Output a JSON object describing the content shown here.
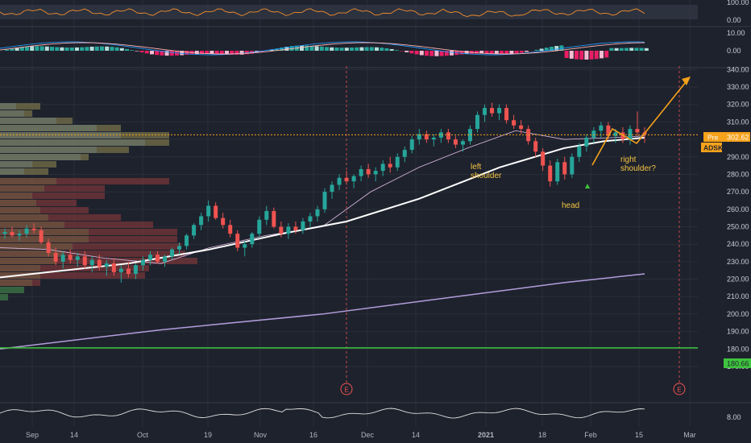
{
  "symbol": "ADSK",
  "pre_label": "Pre",
  "pre_value": "302.62",
  "support_value": "180.66",
  "earnings_marker": "E",
  "colors": {
    "background": "#1e222d",
    "up": "#26a69a",
    "down": "#ef5350",
    "sma50": "#ffffff",
    "sma200": "#b39ddb",
    "ema20": "#e1bee7",
    "support": "#3ec43e",
    "orange": "#f7a21b",
    "annotation": "#f5c542",
    "rsi_line": "#f28e2b",
    "macd_line": "#2196f3",
    "signal_line": "#ffb3b3"
  },
  "x_ticks": [
    "Sep",
    "14",
    "Oct",
    "19",
    "Nov",
    "16",
    "Dec",
    "14",
    "2021",
    "18",
    "Feb",
    "15",
    "Mar"
  ],
  "annotations": {
    "left_shoulder_1": "left",
    "left_shoulder_2": "shoulder",
    "head": "head",
    "right_shoulder_1": "right",
    "right_shoulder_2": "shoulder?"
  },
  "chart_data": [
    {
      "type": "candlestick",
      "symbol": "ADSK",
      "y_ticks": [
        170,
        180,
        190,
        200,
        210,
        220,
        230,
        240,
        250,
        260,
        270,
        280,
        290,
        300,
        310,
        320,
        330,
        340
      ],
      "ylim": [
        164,
        342
      ],
      "grid": true,
      "last_price": 302.62,
      "horizontal_line": 180.66,
      "candles_approx": [
        [
          246,
          249,
          243,
          247
        ],
        [
          247,
          250,
          244,
          245
        ],
        [
          245,
          248,
          242,
          246
        ],
        [
          246,
          251,
          244,
          249
        ],
        [
          249,
          252,
          246,
          248
        ],
        [
          248,
          250,
          240,
          241
        ],
        [
          241,
          243,
          233,
          235
        ],
        [
          235,
          238,
          228,
          230
        ],
        [
          230,
          236,
          226,
          234
        ],
        [
          234,
          237,
          229,
          231
        ],
        [
          231,
          235,
          227,
          233
        ],
        [
          233,
          236,
          226,
          228
        ],
        [
          228,
          233,
          224,
          231
        ],
        [
          231,
          234,
          225,
          227
        ],
        [
          227,
          231,
          222,
          229
        ],
        [
          229,
          232,
          222,
          224
        ],
        [
          224,
          228,
          218,
          226
        ],
        [
          226,
          230,
          221,
          223
        ],
        [
          223,
          229,
          220,
          228
        ],
        [
          228,
          233,
          225,
          231
        ],
        [
          231,
          236,
          228,
          234
        ],
        [
          234,
          236,
          229,
          230
        ],
        [
          230,
          234,
          227,
          233
        ],
        [
          233,
          238,
          231,
          237
        ],
        [
          237,
          241,
          234,
          239
        ],
        [
          239,
          246,
          237,
          245
        ],
        [
          245,
          252,
          243,
          251
        ],
        [
          251,
          258,
          248,
          256
        ],
        [
          256,
          265,
          253,
          262
        ],
        [
          262,
          264,
          254,
          255
        ],
        [
          255,
          258,
          249,
          251
        ],
        [
          251,
          254,
          244,
          246
        ],
        [
          246,
          248,
          236,
          238
        ],
        [
          238,
          242,
          233,
          240
        ],
        [
          240,
          247,
          238,
          246
        ],
        [
          246,
          256,
          244,
          254
        ],
        [
          254,
          262,
          251,
          259
        ],
        [
          259,
          261,
          249,
          250
        ],
        [
          250,
          253,
          244,
          246
        ],
        [
          246,
          252,
          243,
          250
        ],
        [
          250,
          253,
          246,
          248
        ],
        [
          248,
          255,
          246,
          253
        ],
        [
          253,
          258,
          250,
          256
        ],
        [
          256,
          262,
          253,
          260
        ],
        [
          260,
          272,
          258,
          270
        ],
        [
          270,
          276,
          266,
          274
        ],
        [
          274,
          280,
          271,
          278
        ],
        [
          278,
          282,
          274,
          276
        ],
        [
          276,
          280,
          272,
          279
        ],
        [
          279,
          285,
          276,
          283
        ],
        [
          283,
          286,
          278,
          280
        ],
        [
          280,
          284,
          276,
          282
        ],
        [
          282,
          288,
          279,
          286
        ],
        [
          286,
          290,
          281,
          284
        ],
        [
          284,
          292,
          282,
          290
        ],
        [
          290,
          296,
          287,
          294
        ],
        [
          294,
          302,
          292,
          300
        ],
        [
          300,
          306,
          297,
          303
        ],
        [
          303,
          305,
          298,
          300
        ],
        [
          300,
          303,
          296,
          301
        ],
        [
          301,
          306,
          298,
          304
        ],
        [
          304,
          306,
          298,
          300
        ],
        [
          300,
          302,
          295,
          297
        ],
        [
          297,
          300,
          293,
          299
        ],
        [
          299,
          308,
          297,
          306
        ],
        [
          306,
          316,
          304,
          314
        ],
        [
          314,
          320,
          310,
          318
        ],
        [
          318,
          321,
          313,
          315
        ],
        [
          315,
          320,
          311,
          318
        ],
        [
          318,
          320,
          309,
          311
        ],
        [
          311,
          314,
          306,
          308
        ],
        [
          308,
          311,
          303,
          306
        ],
        [
          306,
          308,
          297,
          299
        ],
        [
          299,
          301,
          290,
          293
        ],
        [
          293,
          295,
          282,
          285
        ],
        [
          285,
          288,
          273,
          276
        ],
        [
          276,
          289,
          274,
          287
        ],
        [
          287,
          290,
          277,
          280
        ],
        [
          280,
          292,
          278,
          290
        ],
        [
          290,
          298,
          287,
          296
        ],
        [
          296,
          303,
          293,
          301
        ],
        [
          301,
          307,
          298,
          305
        ],
        [
          305,
          310,
          301,
          308
        ],
        [
          308,
          310,
          300,
          302
        ],
        [
          302,
          306,
          298,
          304
        ],
        [
          304,
          307,
          298,
          300
        ],
        [
          300,
          308,
          297,
          306
        ],
        [
          306,
          316,
          302,
          304
        ],
        [
          304,
          307,
          298,
          303
        ]
      ],
      "sma50_approx": [
        [
          0,
          221
        ],
        [
          60,
          224
        ],
        [
          160,
          229
        ],
        [
          260,
          237
        ],
        [
          350,
          246
        ],
        [
          430,
          253
        ],
        [
          520,
          266
        ],
        [
          620,
          284
        ],
        [
          700,
          295
        ],
        [
          750,
          299
        ],
        [
          800,
          301
        ]
      ],
      "sma200_approx": [
        [
          0,
          180
        ],
        [
          200,
          191
        ],
        [
          400,
          200
        ],
        [
          600,
          212
        ],
        [
          700,
          218
        ],
        [
          800,
          223
        ]
      ],
      "ema20_approx": [
        [
          0,
          238
        ],
        [
          60,
          237
        ],
        [
          130,
          232
        ],
        [
          200,
          229
        ],
        [
          260,
          238
        ],
        [
          330,
          245
        ],
        [
          400,
          250
        ],
        [
          460,
          270
        ],
        [
          520,
          284
        ],
        [
          580,
          295
        ],
        [
          640,
          305
        ],
        [
          700,
          300
        ],
        [
          760,
          301
        ],
        [
          800,
          302
        ]
      ],
      "title": ""
    },
    {
      "type": "line",
      "name": "RSI panel",
      "y_ticks": [
        "100.00",
        "0.00"
      ]
    },
    {
      "type": "bar",
      "name": "MACD panel",
      "y_ticks": [
        "10.00",
        "0.00"
      ]
    },
    {
      "type": "line",
      "name": "Volume/oscillator panel",
      "y_ticks": [
        "8.00"
      ]
    }
  ]
}
